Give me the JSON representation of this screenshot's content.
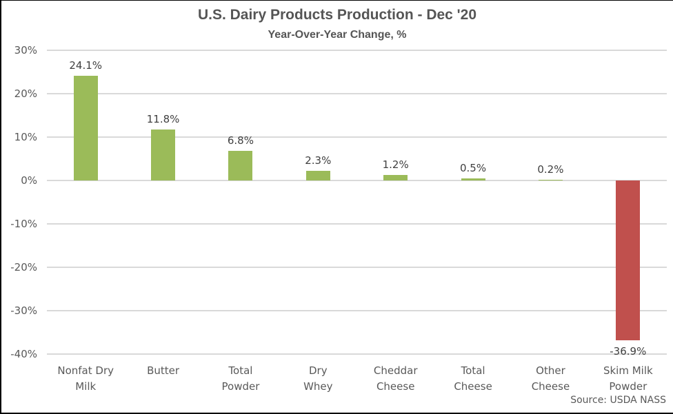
{
  "title": "U.S. Dairy Products Production - Dec '20",
  "subtitle": "Year-Over-Year Change, %",
  "source": "Source: USDA NASS",
  "colors": {
    "positive_bar": "#9bbb59",
    "negative_bar": "#c0504d",
    "gridline": "#d9d9d9",
    "axis_text": "#595959",
    "data_label_text": "#404040",
    "title_text": "#555555"
  },
  "chart_data": {
    "type": "bar",
    "title": "U.S. Dairy Products Production - Dec '20",
    "subtitle": "Year-Over-Year Change, %",
    "categories": [
      "Nonfat Dry\nMilk",
      "Butter",
      "Total\nPowder",
      "Dry\nWhey",
      "Cheddar\nCheese",
      "Total\nCheese",
      "Other\nCheese",
      "Skim Milk\nPowder"
    ],
    "values": [
      24.1,
      11.8,
      6.8,
      2.3,
      1.2,
      0.5,
      0.2,
      -36.9
    ],
    "data_labels": [
      "24.1%",
      "11.8%",
      "6.8%",
      "2.3%",
      "1.2%",
      "0.5%",
      "0.2%",
      "-36.9%"
    ],
    "ylim": [
      -40,
      30
    ],
    "ytick_step": 10,
    "yticks": [
      30,
      20,
      10,
      0,
      -10,
      -20,
      -30,
      -40
    ],
    "ytick_labels": [
      "30%",
      "20%",
      "10%",
      "0%",
      "-10%",
      "-20%",
      "-30%",
      "-40%"
    ],
    "grid": true,
    "legend": "none",
    "xlabel": "",
    "ylabel": "",
    "annotation": "Source: USDA NASS"
  }
}
